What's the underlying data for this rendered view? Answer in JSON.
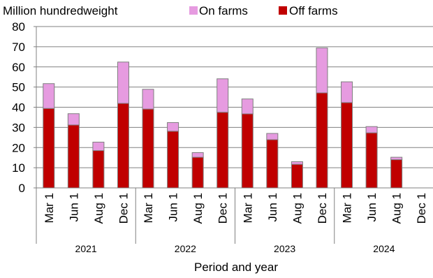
{
  "chart_data": {
    "type": "bar",
    "stacked": true,
    "ylabel": "Million hundredweight",
    "xlabel": "Period and year",
    "ylim": [
      0,
      80
    ],
    "yticks": [
      0,
      10,
      20,
      30,
      40,
      50,
      60,
      70,
      80
    ],
    "grid": "horizontal",
    "legend": {
      "placement": "top"
    },
    "categories": [
      "Mar 1",
      "Jun 1",
      "Aug 1",
      "Dec 1",
      "Mar 1",
      "Jun 1",
      "Aug 1",
      "Dec 1",
      "Mar 1",
      "Jun 1",
      "Aug 1",
      "Dec 1",
      "Mar 1",
      "Jun 1",
      "Aug 1",
      "Dec 1"
    ],
    "groups": [
      {
        "label": "2021"
      },
      {
        "label": "2022"
      },
      {
        "label": "2023"
      },
      {
        "label": "2024"
      }
    ],
    "series": [
      {
        "name": "On farms",
        "color": "#e69be0",
        "values": [
          12.3,
          5.6,
          4.2,
          20.5,
          9.8,
          4.3,
          2.3,
          16.6,
          7.4,
          3.1,
          1.3,
          22.3,
          10.3,
          3.1,
          1.2,
          null
        ]
      },
      {
        "name": "Off farms",
        "color": "#c00000",
        "values": [
          39.4,
          31.2,
          18.5,
          41.9,
          39.1,
          28.1,
          15.2,
          37.5,
          36.7,
          23.9,
          11.7,
          47.1,
          42.3,
          27.3,
          14.0,
          null
        ]
      }
    ]
  }
}
